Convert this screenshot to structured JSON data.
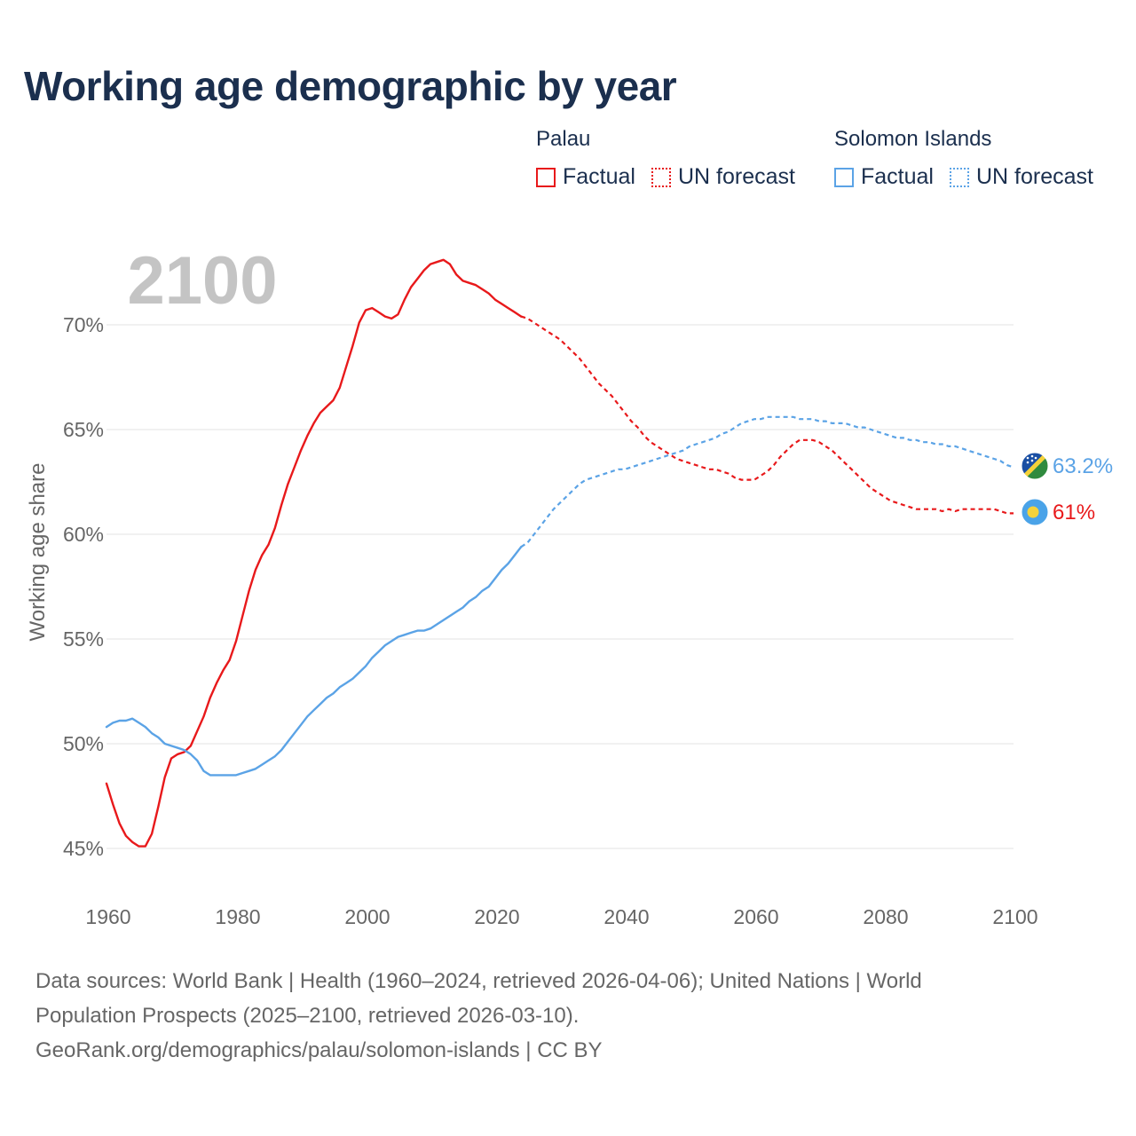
{
  "title": "Working age demographic by year",
  "legend": {
    "groups": [
      {
        "name": "Palau",
        "factual_label": "Factual",
        "forecast_label": "UN forecast",
        "color": "#e8191b"
      },
      {
        "name": "Solomon Islands",
        "factual_label": "Factual",
        "forecast_label": "UN forecast",
        "color": "#5ba3e6"
      }
    ]
  },
  "chart_data": {
    "type": "line",
    "title": "Working age demographic by year",
    "xlabel": "",
    "ylabel": "Working age share",
    "year_label": "2100",
    "xlim": [
      1960,
      2100
    ],
    "ylim": [
      44,
      74
    ],
    "x_ticks": [
      1960,
      1980,
      2000,
      2020,
      2040,
      2060,
      2080,
      2100
    ],
    "y_ticks": [
      45,
      50,
      55,
      60,
      65,
      70
    ],
    "y_tick_labels": [
      "45%",
      "50%",
      "55%",
      "60%",
      "65%",
      "70%"
    ],
    "grid": true,
    "factual_end_year": 2024,
    "series": [
      {
        "name": "Palau",
        "color": "#e8191b",
        "end_label": "61%",
        "flag": "palau-flag-icon",
        "points": [
          [
            1960,
            48.1
          ],
          [
            1961,
            47.1
          ],
          [
            1962,
            46.2
          ],
          [
            1963,
            45.6
          ],
          [
            1964,
            45.3
          ],
          [
            1965,
            45.1
          ],
          [
            1966,
            45.1
          ],
          [
            1967,
            45.7
          ],
          [
            1968,
            47.0
          ],
          [
            1969,
            48.4
          ],
          [
            1970,
            49.3
          ],
          [
            1971,
            49.5
          ],
          [
            1972,
            49.6
          ],
          [
            1973,
            49.9
          ],
          [
            1974,
            50.6
          ],
          [
            1975,
            51.3
          ],
          [
            1976,
            52.2
          ],
          [
            1977,
            52.9
          ],
          [
            1978,
            53.5
          ],
          [
            1979,
            54.0
          ],
          [
            1980,
            54.9
          ],
          [
            1981,
            56.1
          ],
          [
            1982,
            57.3
          ],
          [
            1983,
            58.3
          ],
          [
            1984,
            59.0
          ],
          [
            1985,
            59.5
          ],
          [
            1986,
            60.3
          ],
          [
            1987,
            61.4
          ],
          [
            1988,
            62.4
          ],
          [
            1989,
            63.2
          ],
          [
            1990,
            64.0
          ],
          [
            1991,
            64.7
          ],
          [
            1992,
            65.3
          ],
          [
            1993,
            65.8
          ],
          [
            1994,
            66.1
          ],
          [
            1995,
            66.4
          ],
          [
            1996,
            67.0
          ],
          [
            1997,
            68.0
          ],
          [
            1998,
            69.0
          ],
          [
            1999,
            70.1
          ],
          [
            2000,
            70.7
          ],
          [
            2001,
            70.8
          ],
          [
            2002,
            70.6
          ],
          [
            2003,
            70.4
          ],
          [
            2004,
            70.3
          ],
          [
            2005,
            70.5
          ],
          [
            2006,
            71.2
          ],
          [
            2007,
            71.8
          ],
          [
            2008,
            72.2
          ],
          [
            2009,
            72.6
          ],
          [
            2010,
            72.9
          ],
          [
            2011,
            73.0
          ],
          [
            2012,
            73.1
          ],
          [
            2013,
            72.9
          ],
          [
            2014,
            72.4
          ],
          [
            2015,
            72.1
          ],
          [
            2016,
            72.0
          ],
          [
            2017,
            71.9
          ],
          [
            2018,
            71.7
          ],
          [
            2019,
            71.5
          ],
          [
            2020,
            71.2
          ],
          [
            2021,
            71.0
          ],
          [
            2022,
            70.8
          ],
          [
            2023,
            70.6
          ],
          [
            2024,
            70.4
          ],
          [
            2025,
            70.3
          ],
          [
            2026,
            70.1
          ],
          [
            2027,
            69.9
          ],
          [
            2028,
            69.7
          ],
          [
            2029,
            69.5
          ],
          [
            2030,
            69.3
          ],
          [
            2031,
            69.0
          ],
          [
            2032,
            68.7
          ],
          [
            2033,
            68.4
          ],
          [
            2034,
            68.0
          ],
          [
            2035,
            67.6
          ],
          [
            2036,
            67.2
          ],
          [
            2037,
            66.9
          ],
          [
            2038,
            66.6
          ],
          [
            2039,
            66.2
          ],
          [
            2040,
            65.8
          ],
          [
            2041,
            65.4
          ],
          [
            2042,
            65.1
          ],
          [
            2043,
            64.7
          ],
          [
            2044,
            64.4
          ],
          [
            2045,
            64.2
          ],
          [
            2046,
            64.0
          ],
          [
            2047,
            63.8
          ],
          [
            2048,
            63.6
          ],
          [
            2049,
            63.5
          ],
          [
            2050,
            63.4
          ],
          [
            2051,
            63.3
          ],
          [
            2052,
            63.2
          ],
          [
            2053,
            63.1
          ],
          [
            2054,
            63.1
          ],
          [
            2055,
            63.0
          ],
          [
            2056,
            62.9
          ],
          [
            2057,
            62.7
          ],
          [
            2058,
            62.6
          ],
          [
            2059,
            62.6
          ],
          [
            2060,
            62.6
          ],
          [
            2061,
            62.8
          ],
          [
            2062,
            63.0
          ],
          [
            2063,
            63.3
          ],
          [
            2064,
            63.7
          ],
          [
            2065,
            64.0
          ],
          [
            2066,
            64.3
          ],
          [
            2067,
            64.5
          ],
          [
            2068,
            64.5
          ],
          [
            2069,
            64.5
          ],
          [
            2070,
            64.4
          ],
          [
            2071,
            64.2
          ],
          [
            2072,
            64.0
          ],
          [
            2073,
            63.7
          ],
          [
            2074,
            63.4
          ],
          [
            2075,
            63.1
          ],
          [
            2076,
            62.8
          ],
          [
            2077,
            62.5
          ],
          [
            2078,
            62.2
          ],
          [
            2079,
            62.0
          ],
          [
            2080,
            61.8
          ],
          [
            2081,
            61.6
          ],
          [
            2082,
            61.5
          ],
          [
            2083,
            61.4
          ],
          [
            2084,
            61.3
          ],
          [
            2085,
            61.2
          ],
          [
            2086,
            61.2
          ],
          [
            2087,
            61.2
          ],
          [
            2088,
            61.2
          ],
          [
            2089,
            61.1
          ],
          [
            2090,
            61.2
          ],
          [
            2091,
            61.1
          ],
          [
            2092,
            61.2
          ],
          [
            2093,
            61.2
          ],
          [
            2094,
            61.2
          ],
          [
            2095,
            61.2
          ],
          [
            2096,
            61.2
          ],
          [
            2097,
            61.2
          ],
          [
            2098,
            61.1
          ],
          [
            2099,
            61.0
          ],
          [
            2100,
            61.0
          ]
        ]
      },
      {
        "name": "Solomon Islands",
        "color": "#5ba3e6",
        "end_label": "63.2%",
        "flag": "solomon-islands-flag-icon",
        "points": [
          [
            1960,
            50.8
          ],
          [
            1961,
            51.0
          ],
          [
            1962,
            51.1
          ],
          [
            1963,
            51.1
          ],
          [
            1964,
            51.2
          ],
          [
            1965,
            51.0
          ],
          [
            1966,
            50.8
          ],
          [
            1967,
            50.5
          ],
          [
            1968,
            50.3
          ],
          [
            1969,
            50.0
          ],
          [
            1970,
            49.9
          ],
          [
            1971,
            49.8
          ],
          [
            1972,
            49.7
          ],
          [
            1973,
            49.5
          ],
          [
            1974,
            49.2
          ],
          [
            1975,
            48.7
          ],
          [
            1976,
            48.5
          ],
          [
            1977,
            48.5
          ],
          [
            1978,
            48.5
          ],
          [
            1979,
            48.5
          ],
          [
            1980,
            48.5
          ],
          [
            1981,
            48.6
          ],
          [
            1982,
            48.7
          ],
          [
            1983,
            48.8
          ],
          [
            1984,
            49.0
          ],
          [
            1985,
            49.2
          ],
          [
            1986,
            49.4
          ],
          [
            1987,
            49.7
          ],
          [
            1988,
            50.1
          ],
          [
            1989,
            50.5
          ],
          [
            1990,
            50.9
          ],
          [
            1991,
            51.3
          ],
          [
            1992,
            51.6
          ],
          [
            1993,
            51.9
          ],
          [
            1994,
            52.2
          ],
          [
            1995,
            52.4
          ],
          [
            1996,
            52.7
          ],
          [
            1997,
            52.9
          ],
          [
            1998,
            53.1
          ],
          [
            1999,
            53.4
          ],
          [
            2000,
            53.7
          ],
          [
            2001,
            54.1
          ],
          [
            2002,
            54.4
          ],
          [
            2003,
            54.7
          ],
          [
            2004,
            54.9
          ],
          [
            2005,
            55.1
          ],
          [
            2006,
            55.2
          ],
          [
            2007,
            55.3
          ],
          [
            2008,
            55.4
          ],
          [
            2009,
            55.4
          ],
          [
            2010,
            55.5
          ],
          [
            2011,
            55.7
          ],
          [
            2012,
            55.9
          ],
          [
            2013,
            56.1
          ],
          [
            2014,
            56.3
          ],
          [
            2015,
            56.5
          ],
          [
            2016,
            56.8
          ],
          [
            2017,
            57.0
          ],
          [
            2018,
            57.3
          ],
          [
            2019,
            57.5
          ],
          [
            2020,
            57.9
          ],
          [
            2021,
            58.3
          ],
          [
            2022,
            58.6
          ],
          [
            2023,
            59.0
          ],
          [
            2024,
            59.4
          ],
          [
            2025,
            59.6
          ],
          [
            2026,
            60.0
          ],
          [
            2027,
            60.4
          ],
          [
            2028,
            60.8
          ],
          [
            2029,
            61.2
          ],
          [
            2030,
            61.5
          ],
          [
            2031,
            61.8
          ],
          [
            2032,
            62.1
          ],
          [
            2033,
            62.4
          ],
          [
            2034,
            62.6
          ],
          [
            2035,
            62.7
          ],
          [
            2036,
            62.8
          ],
          [
            2037,
            62.9
          ],
          [
            2038,
            63.0
          ],
          [
            2039,
            63.1
          ],
          [
            2040,
            63.1
          ],
          [
            2041,
            63.2
          ],
          [
            2042,
            63.3
          ],
          [
            2043,
            63.4
          ],
          [
            2044,
            63.5
          ],
          [
            2045,
            63.6
          ],
          [
            2046,
            63.7
          ],
          [
            2047,
            63.8
          ],
          [
            2048,
            63.9
          ],
          [
            2049,
            64.0
          ],
          [
            2050,
            64.2
          ],
          [
            2051,
            64.3
          ],
          [
            2052,
            64.4
          ],
          [
            2053,
            64.5
          ],
          [
            2054,
            64.6
          ],
          [
            2055,
            64.8
          ],
          [
            2056,
            64.9
          ],
          [
            2057,
            65.1
          ],
          [
            2058,
            65.3
          ],
          [
            2059,
            65.4
          ],
          [
            2060,
            65.5
          ],
          [
            2061,
            65.5
          ],
          [
            2062,
            65.6
          ],
          [
            2063,
            65.6
          ],
          [
            2064,
            65.6
          ],
          [
            2065,
            65.6
          ],
          [
            2066,
            65.6
          ],
          [
            2067,
            65.5
          ],
          [
            2068,
            65.5
          ],
          [
            2069,
            65.5
          ],
          [
            2070,
            65.4
          ],
          [
            2071,
            65.4
          ],
          [
            2072,
            65.3
          ],
          [
            2073,
            65.3
          ],
          [
            2074,
            65.3
          ],
          [
            2075,
            65.2
          ],
          [
            2076,
            65.1
          ],
          [
            2077,
            65.1
          ],
          [
            2078,
            65.0
          ],
          [
            2079,
            64.9
          ],
          [
            2080,
            64.8
          ],
          [
            2081,
            64.7
          ],
          [
            2082,
            64.6
          ],
          [
            2083,
            64.6
          ],
          [
            2084,
            64.5
          ],
          [
            2085,
            64.5
          ],
          [
            2086,
            64.4
          ],
          [
            2087,
            64.4
          ],
          [
            2088,
            64.3
          ],
          [
            2089,
            64.3
          ],
          [
            2090,
            64.2
          ],
          [
            2091,
            64.2
          ],
          [
            2092,
            64.1
          ],
          [
            2093,
            64.0
          ],
          [
            2094,
            63.9
          ],
          [
            2095,
            63.8
          ],
          [
            2096,
            63.7
          ],
          [
            2097,
            63.6
          ],
          [
            2098,
            63.5
          ],
          [
            2099,
            63.3
          ],
          [
            2100,
            63.2
          ]
        ]
      }
    ]
  },
  "footer": {
    "line1": "Data sources: World Bank | Health (1960–2024, retrieved 2026-04-06); United Nations | World",
    "line2": "Population Prospects (2025–2100, retrieved 2026-03-10).",
    "line3": "GeoRank.org/demographics/palau/solomon-islands | CC BY"
  }
}
